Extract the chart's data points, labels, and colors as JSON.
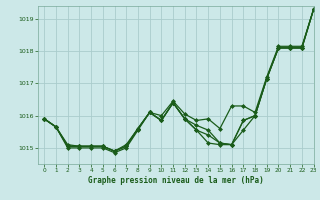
{
  "title": "Graphe pression niveau de la mer (hPa)",
  "background_color": "#cce8e8",
  "line_color": "#1a5c1a",
  "grid_color": "#aacccc",
  "ylim": [
    1014.5,
    1019.4
  ],
  "xlim": [
    -0.5,
    23
  ],
  "yticks": [
    1015,
    1016,
    1017,
    1018,
    1019
  ],
  "xticks": [
    0,
    1,
    2,
    3,
    4,
    5,
    6,
    7,
    8,
    9,
    10,
    11,
    12,
    13,
    14,
    15,
    16,
    17,
    18,
    19,
    20,
    21,
    22,
    23
  ],
  "line_a": [
    1015.9,
    1015.65,
    1015.0,
    1015.0,
    1015.0,
    1015.0,
    1014.85,
    1015.0,
    1015.55,
    1016.1,
    1015.85,
    1016.4,
    1015.9,
    1015.7,
    1015.55,
    1015.15,
    1015.1,
    1015.85,
    1016.0,
    1017.15,
    1018.1,
    1018.1,
    1018.1,
    1019.3
  ],
  "line_b": [
    1015.9,
    1015.65,
    1015.1,
    1015.05,
    1015.05,
    1015.05,
    1014.9,
    1015.1,
    1015.6,
    1016.1,
    1016.0,
    1016.45,
    1016.05,
    1015.85,
    1015.9,
    1015.6,
    1016.3,
    1016.3,
    1016.1,
    1017.2,
    1018.15,
    1018.15,
    1018.15,
    1019.3
  ],
  "line_c": [
    1015.9,
    1015.65,
    1015.05,
    1015.05,
    1015.05,
    1015.05,
    1014.9,
    1015.05,
    1015.6,
    1016.1,
    1015.85,
    1016.4,
    1015.9,
    1015.55,
    1015.4,
    1015.15,
    1015.1,
    1015.55,
    1016.0,
    1017.15,
    1018.1,
    1018.1,
    1018.1,
    1019.3
  ],
  "line_d": [
    1015.9,
    1015.65,
    1015.05,
    1015.05,
    1015.05,
    1015.05,
    1014.9,
    1015.05,
    1015.6,
    1016.1,
    1015.85,
    1016.4,
    1015.9,
    1015.55,
    1015.15,
    1015.1,
    1015.1,
    1015.85,
    1016.0,
    1017.15,
    1018.1,
    1018.1,
    1018.1,
    1019.3
  ]
}
